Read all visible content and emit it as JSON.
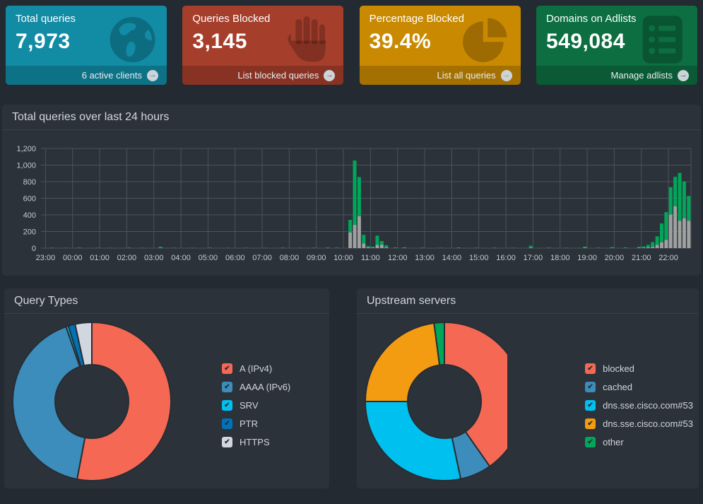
{
  "cards": [
    {
      "title": "Total queries",
      "value": "7,973",
      "footer_label": "6 active clients",
      "color": "#128ba4",
      "icon": "globe-icon"
    },
    {
      "title": "Queries Blocked",
      "value": "3,145",
      "footer_label": "List blocked queries",
      "color": "#a63e2c",
      "icon": "hand-icon"
    },
    {
      "title": "Percentage Blocked",
      "value": "39.4%",
      "footer_label": "List all queries",
      "color": "#c98a02",
      "icon": "pie-chart-icon"
    },
    {
      "title": "Domains on Adlists",
      "value": "549,084",
      "footer_label": "Manage adlists",
      "color": "#0c6e41",
      "icon": "adlist-icon"
    }
  ],
  "chart_data": [
    {
      "type": "bar",
      "stacked": true,
      "title": "Total queries over last 24 hours",
      "interval_minutes": 10,
      "first_slot_time": "22:50",
      "hour_labels": [
        "23:00",
        "00:00",
        "01:00",
        "02:00",
        "03:00",
        "04:00",
        "05:00",
        "06:00",
        "07:00",
        "08:00",
        "09:00",
        "10:00",
        "11:00",
        "12:00",
        "13:00",
        "14:00",
        "15:00",
        "16:00",
        "17:00",
        "18:00",
        "19:00",
        "20:00",
        "21:00",
        "22:00"
      ],
      "ylim": [
        0,
        1200
      ],
      "y_tick_labels": [
        "1,200",
        "1,000",
        "800",
        "600",
        "400",
        "200",
        "0"
      ],
      "grid": true,
      "series_colors": {
        "permitted": "#00a65a",
        "blocked": "#9ea1a0"
      },
      "totals": [
        0,
        0,
        5,
        0,
        0,
        4,
        0,
        0,
        6,
        0,
        0,
        0,
        5,
        0,
        0,
        4,
        0,
        0,
        0,
        6,
        0,
        0,
        4,
        0,
        0,
        0,
        16,
        0,
        0,
        5,
        0,
        0,
        0,
        4,
        0,
        0,
        0,
        6,
        0,
        0,
        0,
        4,
        0,
        0,
        0,
        5,
        0,
        0,
        0,
        4,
        0,
        0,
        0,
        6,
        0,
        0,
        0,
        4,
        0,
        0,
        5,
        0,
        0,
        8,
        0,
        6,
        0,
        0,
        340,
        1055,
        855,
        160,
        25,
        18,
        150,
        85,
        35,
        0,
        8,
        0,
        10,
        0,
        0,
        0,
        6,
        0,
        0,
        0,
        5,
        0,
        0,
        0,
        8,
        0,
        0,
        0,
        5,
        0,
        0,
        0,
        6,
        0,
        0,
        0,
        5,
        0,
        0,
        0,
        28,
        0,
        0,
        0,
        6,
        0,
        0,
        0,
        5,
        0,
        0,
        0,
        18,
        0,
        0,
        6,
        0,
        0,
        12,
        0,
        0,
        8,
        0,
        0,
        15,
        20,
        40,
        72,
        142,
        297,
        433,
        733,
        858,
        905,
        803,
        628
      ],
      "blocked": [
        0,
        0,
        1,
        0,
        0,
        1,
        0,
        0,
        2,
        0,
        0,
        0,
        1,
        0,
        0,
        1,
        0,
        0,
        0,
        2,
        0,
        0,
        1,
        0,
        0,
        0,
        3,
        0,
        0,
        1,
        0,
        0,
        0,
        1,
        0,
        0,
        0,
        2,
        0,
        0,
        0,
        1,
        0,
        0,
        0,
        1,
        0,
        0,
        0,
        1,
        0,
        0,
        0,
        2,
        0,
        0,
        0,
        1,
        0,
        0,
        2,
        0,
        0,
        2,
        0,
        2,
        0,
        0,
        190,
        280,
        385,
        55,
        8,
        5,
        38,
        42,
        10,
        0,
        2,
        0,
        3,
        0,
        0,
        0,
        2,
        0,
        0,
        0,
        1,
        0,
        0,
        0,
        2,
        0,
        0,
        0,
        1,
        0,
        0,
        0,
        2,
        0,
        0,
        0,
        1,
        0,
        0,
        0,
        6,
        0,
        0,
        0,
        2,
        0,
        0,
        0,
        1,
        0,
        0,
        0,
        4,
        0,
        0,
        2,
        0,
        0,
        3,
        0,
        0,
        2,
        0,
        0,
        4,
        5,
        10,
        15,
        40,
        70,
        100,
        405,
        505,
        330,
        360,
        330
      ]
    },
    {
      "type": "pie",
      "donut": true,
      "title": "Query Types",
      "labels": [
        "A (IPv4)",
        "AAAA (IPv6)",
        "SRV",
        "PTR",
        "HTTPS"
      ],
      "values": [
        53.0,
        41.7,
        0.5,
        1.4,
        3.4
      ],
      "colors": [
        "#f56954",
        "#3c8dbc",
        "#00c0ef",
        "#0073b7",
        "#d2d6de"
      ],
      "legend_position": "right"
    },
    {
      "type": "pie",
      "donut": true,
      "title": "Upstream servers",
      "labels": [
        "blocked",
        "cached",
        "dns.sse.cisco.com#53",
        "dns.sse.cisco.com#53",
        "other"
      ],
      "values": [
        40.3,
        6.4,
        28.3,
        22.9,
        2.1
      ],
      "colors": [
        "#f56954",
        "#3c8dbc",
        "#00c0ef",
        "#f39c12",
        "#00a65a"
      ],
      "legend_position": "right"
    }
  ],
  "ui_colors": {
    "page_background": "#242a31",
    "panel_background": "#2b323a",
    "panel_border": "#3a424b",
    "grid_line": "#4c535a",
    "axis_text": "#c4cad0"
  },
  "icons": {
    "footer_arrow": "arrow-circle-right-icon",
    "legend_check": "checkmark-icon"
  }
}
